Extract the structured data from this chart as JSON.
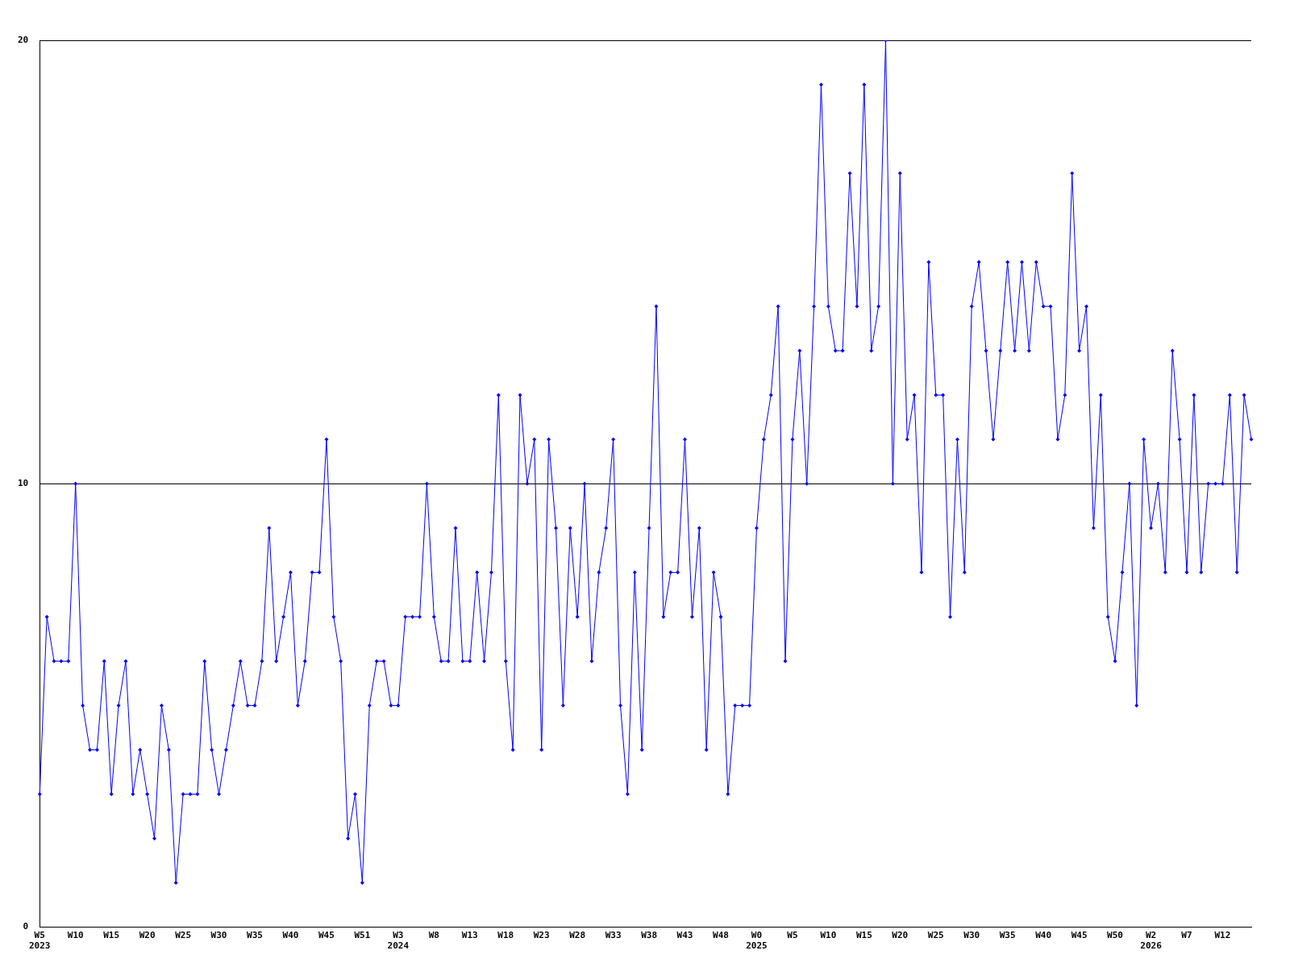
{
  "chart_data": {
    "type": "line",
    "categories": [
      "W5\n2023",
      null,
      null,
      null,
      null,
      "W10",
      null,
      null,
      null,
      null,
      "W15",
      null,
      null,
      null,
      null,
      "W20",
      null,
      null,
      null,
      null,
      "W25",
      null,
      null,
      null,
      null,
      "W30",
      null,
      null,
      null,
      null,
      "W35",
      null,
      null,
      null,
      null,
      "W40",
      null,
      null,
      null,
      null,
      "W45",
      null,
      null,
      null,
      null,
      "W51",
      null,
      null,
      null,
      null,
      "W3\n2024",
      null,
      null,
      null,
      null,
      "W8",
      null,
      null,
      null,
      null,
      "W13",
      null,
      null,
      null,
      null,
      "W18",
      null,
      null,
      null,
      null,
      "W23",
      null,
      null,
      null,
      null,
      "W28",
      null,
      null,
      null,
      null,
      "W33",
      null,
      null,
      null,
      null,
      "W38",
      null,
      null,
      null,
      null,
      "W43",
      null,
      null,
      null,
      null,
      "W48",
      null,
      null,
      null,
      null,
      "W0\n2025",
      null,
      null,
      null,
      null,
      "W5",
      null,
      null,
      null,
      null,
      "W10",
      null,
      null,
      null,
      null,
      "W15",
      null,
      null,
      null,
      null,
      "W20",
      null,
      null,
      null,
      null,
      "W25",
      null,
      null,
      null,
      null,
      "W30",
      null,
      null,
      null,
      null,
      "W35",
      null,
      null,
      null,
      null,
      "W40",
      null,
      null,
      null,
      null,
      "W45",
      null,
      null,
      null,
      null,
      "W50",
      null,
      null,
      null,
      null,
      "W2\n2026",
      null,
      null,
      null,
      null,
      "W7",
      null,
      null,
      null,
      null,
      "W12",
      null,
      null,
      null,
      null
    ],
    "series": [
      {
        "color": "#0000ff",
        "values": [
          3,
          7,
          6,
          6,
          6,
          10,
          5,
          4,
          4,
          6,
          3,
          5,
          6,
          3,
          4,
          3,
          2,
          5,
          4,
          1,
          3,
          3,
          3,
          6,
          4,
          3,
          4,
          5,
          6,
          5,
          5,
          6,
          9,
          6,
          7,
          8,
          5,
          6,
          8,
          8,
          11,
          7,
          6,
          2,
          3,
          1,
          5,
          6,
          6,
          5,
          5,
          7,
          7,
          7,
          10,
          7,
          6,
          6,
          9,
          6,
          6,
          8,
          6,
          8,
          12,
          6,
          4,
          12,
          10,
          11,
          4,
          11,
          9,
          5,
          9,
          7,
          10,
          6,
          8,
          9,
          11,
          5,
          3,
          8,
          4,
          9,
          14,
          7,
          8,
          8,
          11,
          7,
          9,
          4,
          8,
          7,
          3,
          5,
          5,
          5,
          9,
          11,
          12,
          14,
          6,
          11,
          13,
          10,
          14,
          19,
          14,
          13,
          13,
          17,
          14,
          19,
          13,
          14,
          20,
          10,
          17,
          11,
          12,
          8,
          15,
          12,
          12,
          7,
          11,
          8,
          14,
          15,
          13,
          11,
          13,
          15,
          13,
          15,
          13,
          15,
          14,
          14,
          11,
          12,
          17,
          13,
          14,
          9,
          12,
          7,
          6,
          8,
          10,
          5,
          11,
          9,
          10,
          8,
          13,
          11,
          8,
          12,
          8,
          10,
          10,
          10,
          12,
          8,
          12,
          11
        ]
      }
    ],
    "ylim": [
      0,
      20
    ],
    "yticks": [
      0,
      10,
      20
    ],
    "grid": "y",
    "legend": false,
    "marker": "diamond",
    "line_style": "solid"
  }
}
